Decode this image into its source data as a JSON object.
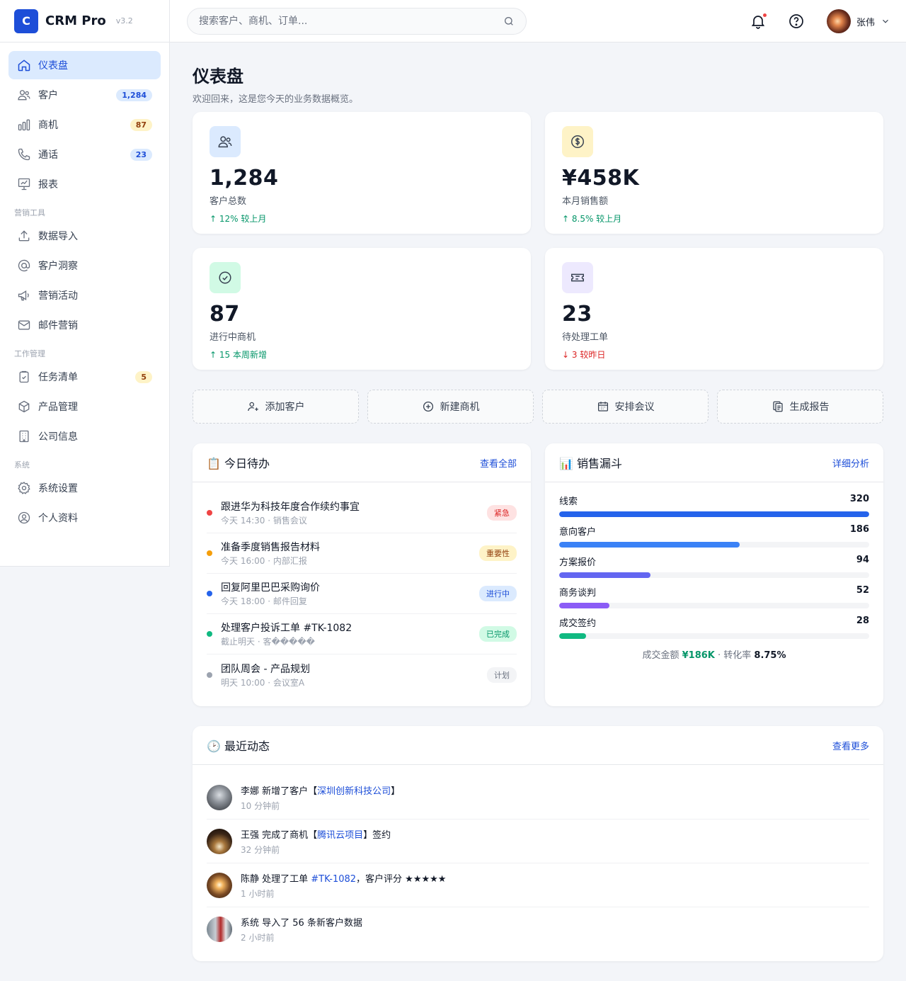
{
  "brand": {
    "logo": "C",
    "name": "CRM Pro",
    "version": "v3.2"
  },
  "nav": {
    "main": [
      {
        "label": "仪表盘",
        "icon": "home-icon",
        "active": true,
        "badge": ""
      },
      {
        "label": "客户",
        "icon": "users-icon",
        "badge": "1,284",
        "badge_color": "blue"
      },
      {
        "label": "商机",
        "icon": "bar-chart-icon",
        "badge": "87",
        "badge_color": "yellow"
      },
      {
        "label": "通话",
        "icon": "phone-icon",
        "badge": "23",
        "badge_color": "blue"
      },
      {
        "label": "报表",
        "icon": "presentation-chart-icon",
        "badge": ""
      }
    ],
    "section_marketing": "营销工具",
    "marketing": [
      {
        "label": "数据导入",
        "icon": "upload-icon"
      },
      {
        "label": "客户洞察",
        "icon": "at-sign-icon"
      },
      {
        "label": "营销活动",
        "icon": "megaphone-icon"
      },
      {
        "label": "邮件营销",
        "icon": "mail-icon"
      }
    ],
    "section_work": "工作管理",
    "work": [
      {
        "label": "任务清单",
        "icon": "clipboard-check-icon",
        "badge": "5"
      },
      {
        "label": "产品管理",
        "icon": "box-icon"
      },
      {
        "label": "公司信息",
        "icon": "building-icon"
      }
    ],
    "section_system": "系统",
    "system": [
      {
        "label": "系统设置",
        "icon": "gear-icon"
      },
      {
        "label": "个人资料",
        "icon": "user-circle-icon"
      }
    ]
  },
  "topbar": {
    "search_placeholder": "搜索客户、商机、订单...",
    "user_name": "张伟"
  },
  "page": {
    "title": "仪表盘",
    "subtitle": "欢迎回来，这是您今天的业务数据概览。"
  },
  "stats": [
    {
      "value": "1,284",
      "label": "客户总数",
      "change": "↑ 12% 较上月",
      "trend": "up",
      "icon": "users-icon",
      "color": "#dbeafe"
    },
    {
      "value": "¥458K",
      "label": "本月销售额",
      "change": "↑ 8.5% 较上月",
      "trend": "up",
      "icon": "dollar-icon",
      "color": "#fef3c7"
    },
    {
      "value": "87",
      "label": "进行中商机",
      "change": "↑ 15 本周新增",
      "trend": "up",
      "icon": "check-circle-icon",
      "color": "#d1fae5"
    },
    {
      "value": "23",
      "label": "待处理工单",
      "change": "↓ 3 较昨日",
      "trend": "down",
      "icon": "ticket-icon",
      "color": "#ede9fe"
    }
  ],
  "quick_actions": [
    {
      "label": "添加客户",
      "icon": "user-plus-icon"
    },
    {
      "label": "新建商机",
      "icon": "plus-circle-icon"
    },
    {
      "label": "安排会议",
      "icon": "calendar-icon"
    },
    {
      "label": "生成报告",
      "icon": "copy-icon"
    }
  ],
  "todos": {
    "title": "📋 今日待办",
    "link": "查看全部",
    "items": [
      {
        "title": "跟进华为科技年度合作续约事宜",
        "meta": "今天 14:30 · 销售会议",
        "tag": "紧急",
        "color": "#ef4444",
        "tag_bg": "#fee2e2",
        "tag_fg": "#dc2626"
      },
      {
        "title": "准备季度销售报告材料",
        "meta": "今天 16:00 · 内部汇报",
        "tag": "重要性",
        "color": "#f59e0b",
        "tag_bg": "#fef3c7",
        "tag_fg": "#92400e"
      },
      {
        "title": "回复阿里巴巴采购询价",
        "meta": "今天 18:00 · 邮件回复",
        "tag": "进行中",
        "color": "#2563eb",
        "tag_bg": "#dbeafe",
        "tag_fg": "#1d4ed8"
      },
      {
        "title": "处理客户投诉工单 #TK-1082",
        "meta": "截止明天 · 客�����",
        "tag": "已完成",
        "color": "#10b981",
        "tag_bg": "#d1fae5",
        "tag_fg": "#059669"
      },
      {
        "title": "团队周会 - 产品规划",
        "meta": "明天 10:00 · 会议室A",
        "tag": "计划",
        "color": "#9ca3af",
        "tag_bg": "#f3f4f6",
        "tag_fg": "#6b7280"
      }
    ]
  },
  "funnel": {
    "title": "📊 销售漏斗",
    "link": "详细分析",
    "max": 320,
    "stages": [
      {
        "label": "线索",
        "value": 320,
        "color": "#2563eb"
      },
      {
        "label": "意向客户",
        "value": 186,
        "color": "#3b82f6"
      },
      {
        "label": "方案报价",
        "value": 94,
        "color": "#6366f1"
      },
      {
        "label": "商务谈判",
        "value": 52,
        "color": "#8b5cf6"
      },
      {
        "label": "成交签约",
        "value": 28,
        "color": "#10b981"
      }
    ],
    "footer_prefix": "成交金额 ",
    "footer_amount": "¥186K",
    "footer_mid": " · 转化率 ",
    "footer_rate": "8.75%"
  },
  "activity": {
    "title": "🕑 最近动态",
    "link": "查看更多",
    "items": [
      {
        "pre": "李娜 新增了客户【",
        "hl": "深圳创新科技公司",
        "post": "】",
        "time": "10 分钟前"
      },
      {
        "pre": "王强 完成了商机【",
        "hl": "腾讯云项目",
        "post": "】签约",
        "time": "32 分钟前"
      },
      {
        "pre": "陈静 处理了工单 ",
        "hl": "#TK-1082",
        "post": "，客户评分 ★★★★★",
        "time": "1 小时前"
      },
      {
        "pre": "系统 导入了 56 条新客户数据",
        "hl": "",
        "post": "",
        "time": "2 小时前"
      }
    ]
  }
}
